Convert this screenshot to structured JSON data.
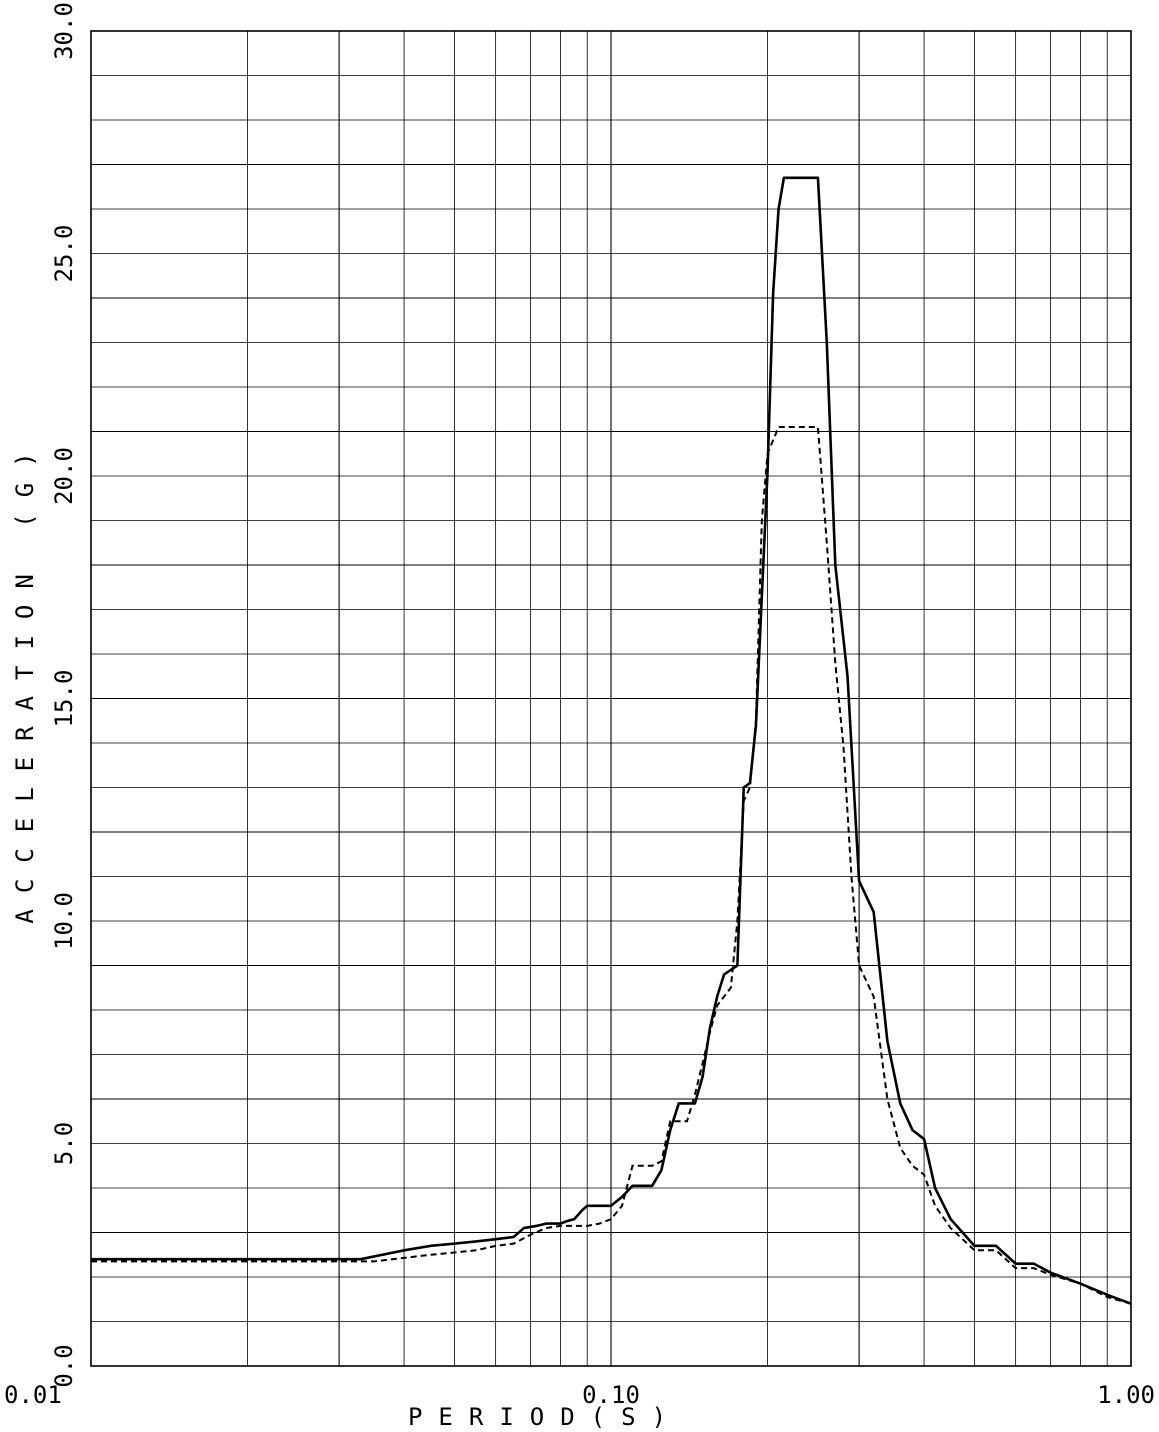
{
  "chart_data": {
    "type": "line",
    "title": "",
    "xlabel": "PERIOD(S)",
    "ylabel": "ACCELERATION (G)",
    "xscale": "log",
    "xlim": [
      0.01,
      1.0
    ],
    "ylim": [
      0.0,
      30.0
    ],
    "grid": true,
    "x_tick_labels": [
      "0.01",
      "0.10",
      "1.00"
    ],
    "x_ticks": [
      0.01,
      0.1,
      1.0
    ],
    "y_tick_labels": [
      "0.0",
      "5.0",
      "10.0",
      "15.0",
      "20.0",
      "25.0",
      "30.0"
    ],
    "y_ticks": [
      0,
      5,
      10,
      15,
      20,
      25,
      30
    ],
    "y_minor_step": 1.0,
    "series": [
      {
        "style": "solid",
        "points": [
          [
            0.01,
            2.4
          ],
          [
            0.033,
            2.4
          ],
          [
            0.04,
            2.6
          ],
          [
            0.045,
            2.7
          ],
          [
            0.05,
            2.75
          ],
          [
            0.055,
            2.8
          ],
          [
            0.06,
            2.85
          ],
          [
            0.065,
            2.9
          ],
          [
            0.068,
            3.1
          ],
          [
            0.072,
            3.15
          ],
          [
            0.075,
            3.2
          ],
          [
            0.08,
            3.2
          ],
          [
            0.082,
            3.25
          ],
          [
            0.085,
            3.3
          ],
          [
            0.088,
            3.5
          ],
          [
            0.09,
            3.6
          ],
          [
            0.095,
            3.6
          ],
          [
            0.1,
            3.6
          ],
          [
            0.105,
            3.8
          ],
          [
            0.11,
            4.05
          ],
          [
            0.12,
            4.05
          ],
          [
            0.125,
            4.4
          ],
          [
            0.13,
            5.3
          ],
          [
            0.135,
            5.9
          ],
          [
            0.145,
            5.9
          ],
          [
            0.15,
            6.5
          ],
          [
            0.155,
            7.6
          ],
          [
            0.16,
            8.3
          ],
          [
            0.165,
            8.8
          ],
          [
            0.17,
            8.9
          ],
          [
            0.175,
            9.0
          ],
          [
            0.18,
            13.0
          ],
          [
            0.185,
            13.1
          ],
          [
            0.19,
            14.4
          ],
          [
            0.2,
            20.1
          ],
          [
            0.205,
            24.1
          ],
          [
            0.21,
            26.0
          ],
          [
            0.215,
            26.7
          ],
          [
            0.25,
            26.7
          ],
          [
            0.26,
            23.0
          ],
          [
            0.27,
            18.0
          ],
          [
            0.285,
            15.5
          ],
          [
            0.3,
            10.9
          ],
          [
            0.32,
            10.2
          ],
          [
            0.34,
            7.3
          ],
          [
            0.36,
            5.9
          ],
          [
            0.38,
            5.3
          ],
          [
            0.4,
            5.1
          ],
          [
            0.42,
            4.0
          ],
          [
            0.45,
            3.3
          ],
          [
            0.5,
            2.7
          ],
          [
            0.55,
            2.7
          ],
          [
            0.6,
            2.3
          ],
          [
            0.65,
            2.3
          ],
          [
            0.7,
            2.1
          ],
          [
            0.8,
            1.85
          ],
          [
            0.9,
            1.6
          ],
          [
            1.0,
            1.4
          ]
        ]
      },
      {
        "style": "dashed",
        "points": [
          [
            0.01,
            2.35
          ],
          [
            0.035,
            2.35
          ],
          [
            0.045,
            2.5
          ],
          [
            0.05,
            2.55
          ],
          [
            0.055,
            2.6
          ],
          [
            0.06,
            2.7
          ],
          [
            0.065,
            2.75
          ],
          [
            0.07,
            2.95
          ],
          [
            0.075,
            3.1
          ],
          [
            0.08,
            3.15
          ],
          [
            0.09,
            3.15
          ],
          [
            0.095,
            3.2
          ],
          [
            0.1,
            3.3
          ],
          [
            0.105,
            3.6
          ],
          [
            0.11,
            4.5
          ],
          [
            0.12,
            4.5
          ],
          [
            0.125,
            4.6
          ],
          [
            0.13,
            5.5
          ],
          [
            0.14,
            5.5
          ],
          [
            0.145,
            6.1
          ],
          [
            0.15,
            6.8
          ],
          [
            0.155,
            7.5
          ],
          [
            0.16,
            8.1
          ],
          [
            0.17,
            8.5
          ],
          [
            0.175,
            10.0
          ],
          [
            0.18,
            12.7
          ],
          [
            0.185,
            13.0
          ],
          [
            0.19,
            14.5
          ],
          [
            0.195,
            19.0
          ],
          [
            0.2,
            20.5
          ],
          [
            0.21,
            21.1
          ],
          [
            0.25,
            21.1
          ],
          [
            0.26,
            18.5
          ],
          [
            0.27,
            15.8
          ],
          [
            0.28,
            13.9
          ],
          [
            0.29,
            11.0
          ],
          [
            0.3,
            9.0
          ],
          [
            0.32,
            8.3
          ],
          [
            0.34,
            6.0
          ],
          [
            0.36,
            4.9
          ],
          [
            0.38,
            4.5
          ],
          [
            0.4,
            4.3
          ],
          [
            0.42,
            3.6
          ],
          [
            0.45,
            3.1
          ],
          [
            0.5,
            2.6
          ],
          [
            0.55,
            2.6
          ],
          [
            0.6,
            2.2
          ],
          [
            0.65,
            2.2
          ],
          [
            0.7,
            2.05
          ],
          [
            0.8,
            1.85
          ],
          [
            0.9,
            1.55
          ],
          [
            1.0,
            1.4
          ]
        ]
      }
    ]
  }
}
